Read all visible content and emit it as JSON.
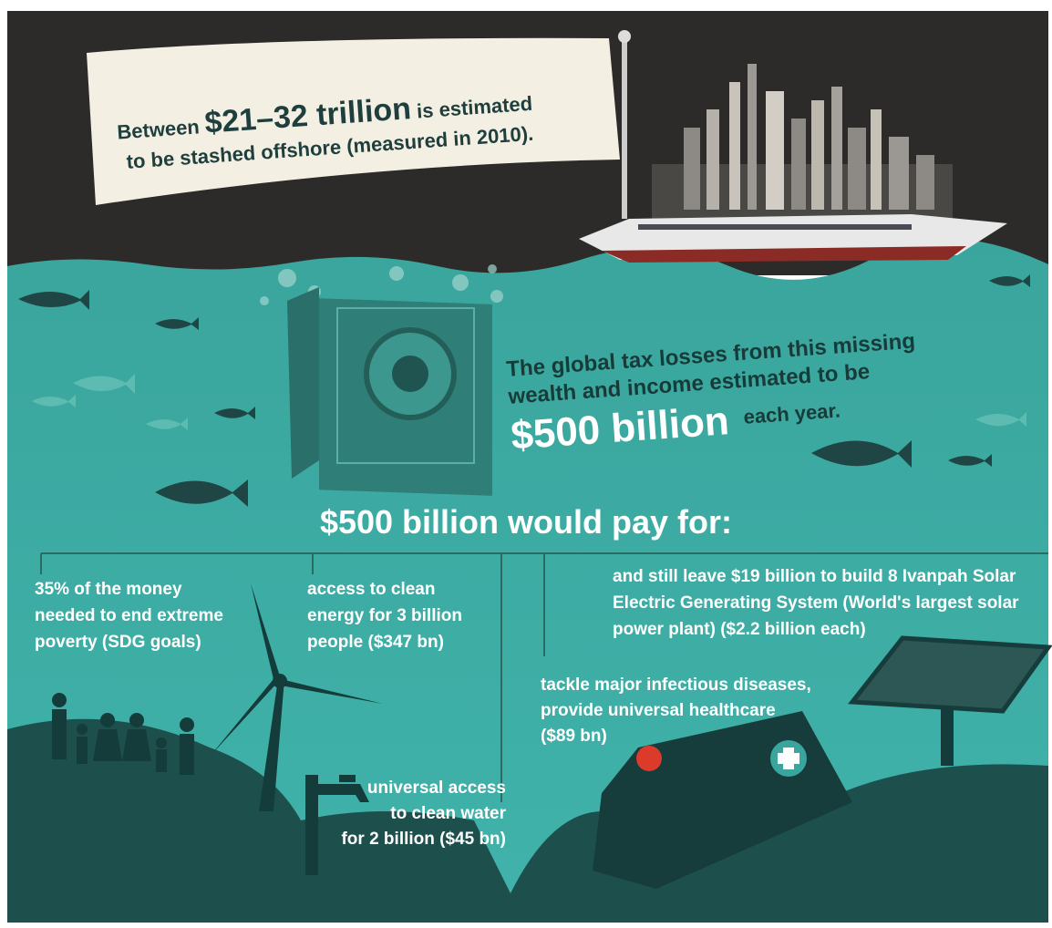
{
  "banner": {
    "prefix": "Between",
    "amount": "$21–32 trillion",
    "suffix": "is estimated",
    "line2": "to be stashed offshore (measured in 2010)."
  },
  "tax_losses": {
    "lines": [
      "The global tax losses from this missing",
      "wealth and income estimated to be"
    ],
    "amount": "$500 billion",
    "suffix": "each year."
  },
  "pay_for": {
    "heading": "$500 billion would pay for:",
    "items": [
      {
        "lines": [
          "35% of the money",
          "needed to end extreme",
          "poverty (SDG goals)"
        ]
      },
      {
        "lines": [
          "access to clean",
          "energy for 3 billion",
          "people ($347 bn)"
        ]
      },
      {
        "lines": [
          "and still leave $19 billion to build 8 Ivanpah Solar",
          "Electric Generating System (World's largest solar",
          "power plant) ($2.2 billion each)"
        ]
      },
      {
        "lines": [
          "tackle major infectious diseases,",
          "provide universal healthcare",
          "($89 bn)"
        ]
      },
      {
        "lines": [
          "universal access",
          "to clean water",
          "for 2 billion ($45 bn)"
        ]
      }
    ]
  }
}
